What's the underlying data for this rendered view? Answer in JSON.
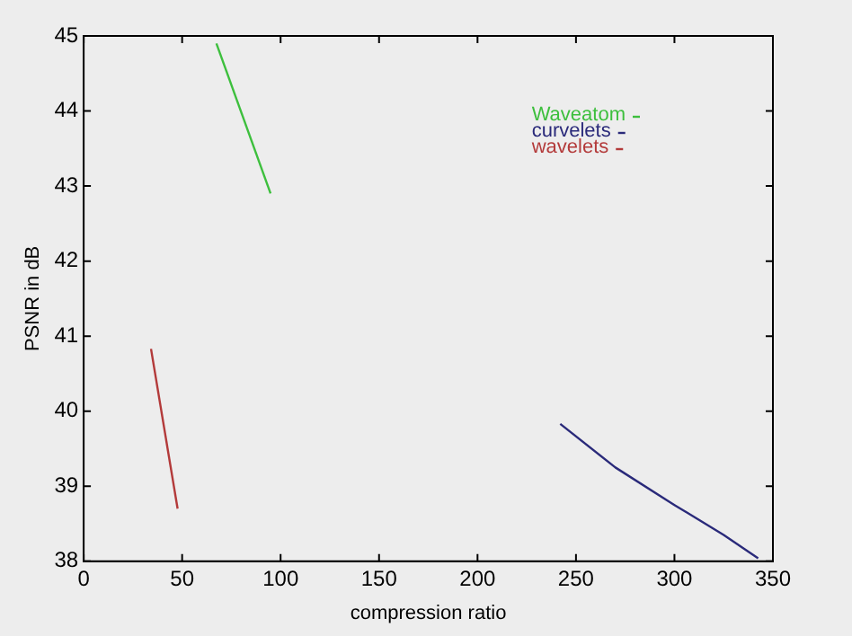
{
  "chart_data": {
    "type": "line",
    "xlabel": "compression ratio",
    "ylabel": "PSNR in dB",
    "xlim": [
      0,
      350
    ],
    "xticks": [
      0,
      50,
      100,
      150,
      200,
      250,
      300,
      350
    ],
    "ylim": [
      38,
      45
    ],
    "yticks": [
      38,
      39,
      40,
      41,
      42,
      43,
      44,
      45
    ],
    "grid": false,
    "legend": "top right",
    "marker": "none",
    "line_style": "solid",
    "series": [
      {
        "name": "Waveatom",
        "color": "#3dbf3d",
        "x": [
          67.4,
          94.9
        ],
        "values": [
          44.9,
          42.9
        ]
      },
      {
        "name": "curvelets",
        "color": "#2a2a7a",
        "x": [
          242,
          270,
          300,
          325,
          342.5
        ],
        "values": [
          39.83,
          39.25,
          38.75,
          38.35,
          38.04
        ]
      },
      {
        "name": "wavelets",
        "color": "#b33a3a",
        "x": [
          34.2,
          47.7
        ],
        "values": [
          40.83,
          38.7
        ]
      }
    ]
  }
}
